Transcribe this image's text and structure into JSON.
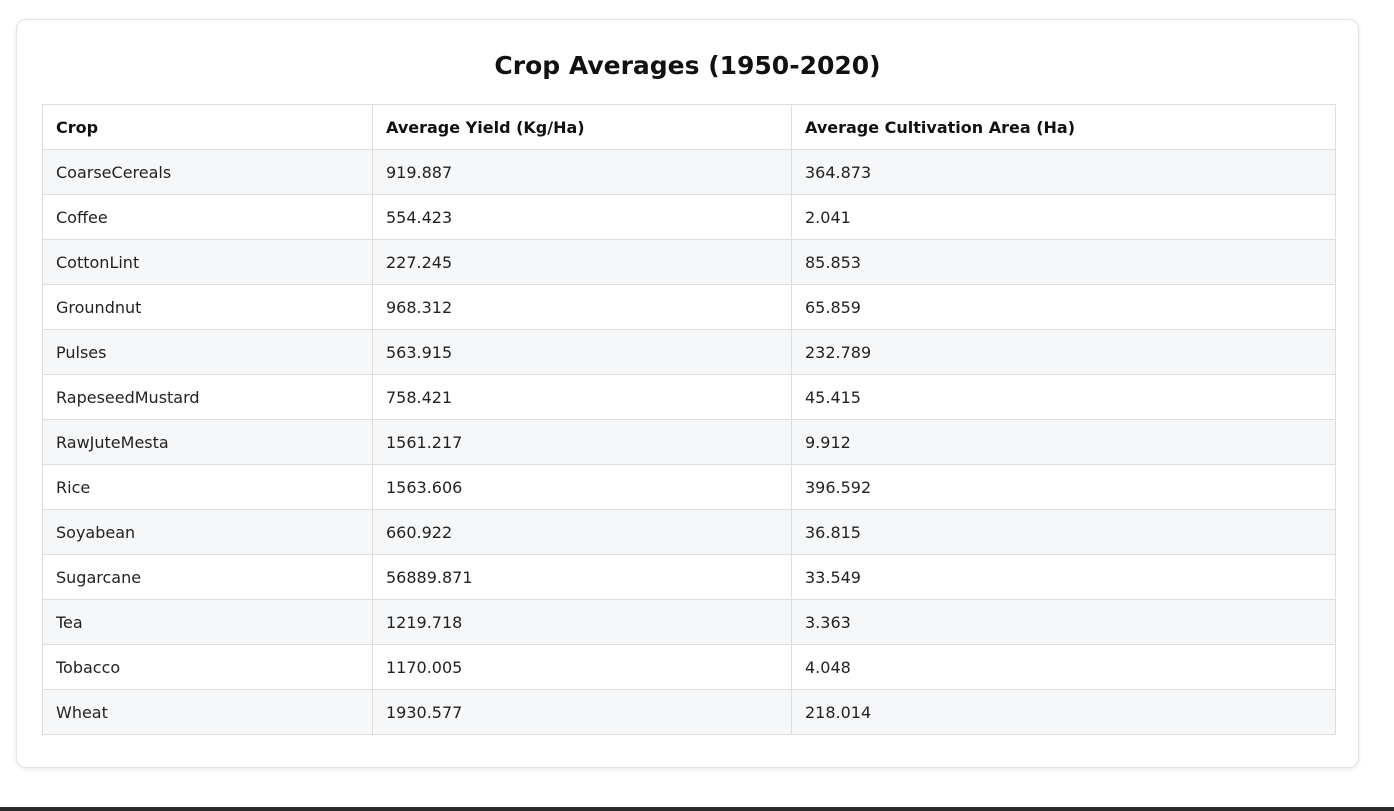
{
  "title": "Crop Averages (1950-2020)",
  "table": {
    "headers": [
      "Crop",
      "Average Yield (Kg/Ha)",
      "Average Cultivation Area (Ha)"
    ],
    "rows": [
      [
        "CoarseCereals",
        "919.887",
        "364.873"
      ],
      [
        "Coffee",
        "554.423",
        "2.041"
      ],
      [
        "CottonLint",
        "227.245",
        "85.853"
      ],
      [
        "Groundnut",
        "968.312",
        "65.859"
      ],
      [
        "Pulses",
        "563.915",
        "232.789"
      ],
      [
        "RapeseedMustard",
        "758.421",
        "45.415"
      ],
      [
        "RawJuteMesta",
        "1561.217",
        "9.912"
      ],
      [
        "Rice",
        "1563.606",
        "396.592"
      ],
      [
        "Soyabean",
        "660.922",
        "36.815"
      ],
      [
        "Sugarcane",
        "56889.871",
        "33.549"
      ],
      [
        "Tea",
        "1219.718",
        "3.363"
      ],
      [
        "Tobacco",
        "1170.005",
        "4.048"
      ],
      [
        "Wheat",
        "1930.577",
        "218.014"
      ]
    ]
  },
  "colors": {
    "row_stripe": "#f6f7f9",
    "border": "#dedede",
    "card_border": "#e3e3e3"
  }
}
